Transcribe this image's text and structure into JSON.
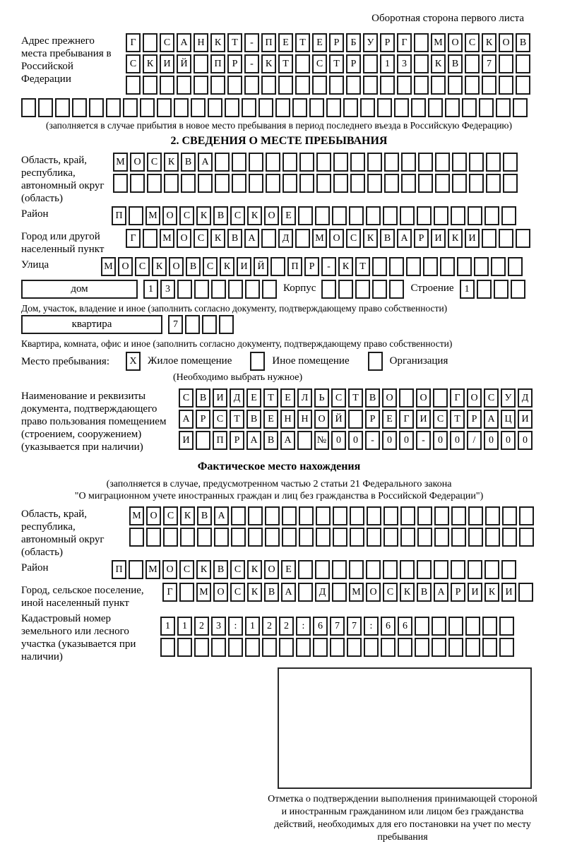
{
  "header": {
    "corner_note": "Оборотная сторона первого листа"
  },
  "prev_address": {
    "label": "Адрес прежнего места пребывания в Российской Федерации",
    "rows": [
      {
        "text": "Г САНКТ-ПЕТЕРБУРГ МОСКОВ",
        "len": 24
      },
      {
        "text": "СКИЙ ПР-КТ СТР 13 КВ 7",
        "len": 24
      },
      {
        "text": "",
        "len": 24
      }
    ],
    "full_row": {
      "text": "",
      "len": 30
    },
    "note": "(заполняется в случае прибытия в новое место пребывания в период последнего въезда в Российскую Федерацию)"
  },
  "section2": {
    "title": "2. СВЕДЕНИЯ О МЕСТЕ ПРЕБЫВАНИЯ",
    "region": {
      "label": "Область, край, республика, автономный округ (область)",
      "rows": [
        {
          "text": "МОСКВА",
          "len": 24
        },
        {
          "text": "",
          "len": 24
        }
      ]
    },
    "district": {
      "label": "Район",
      "row": {
        "text": "П МОСКВСКОЕ",
        "len": 24
      }
    },
    "city": {
      "label": "Город или другой населенный пункт",
      "row": {
        "text": "Г МОСКВА Д МОСКВАРИКИ",
        "len": 24
      }
    },
    "street": {
      "label": "Улица",
      "row": {
        "text": "МОСКОВСКИЙ ПР-КТ",
        "len": 25
      }
    },
    "house": {
      "box_label": "дом",
      "row": {
        "text": "13",
        "len": 8
      },
      "korpus_label": "Корпус",
      "korpus_row": {
        "text": "",
        "len": 5
      },
      "stroenie_label": "Строение",
      "stroenie_row": {
        "text": "1",
        "len": 4
      }
    },
    "house_note": "Дом, участок, владение и иное (заполнить согласно документу, подтверждающему право собственности)",
    "apartment": {
      "box_label": "квартира",
      "row": {
        "text": "7",
        "len": 4
      }
    },
    "apartment_note": "Квартира, комната, офис и иное (заполнить согласно документу, подтверждающему право собственности)",
    "stay": {
      "label": "Место пребывания:",
      "options": [
        {
          "mark": "X",
          "label": "Жилое помещение"
        },
        {
          "mark": "",
          "label": "Иное помещение"
        },
        {
          "mark": "",
          "label": "Организация"
        }
      ],
      "hint": "(Необходимо выбрать нужное)"
    },
    "doc": {
      "label": "Наименование и реквизиты документа, подтверждающего право пользования помещением (строением, сооружением) (указывается при наличии)",
      "rows": [
        {
          "text": "СВИДЕТЕЛЬСТВО О ГОСУД",
          "len": 21
        },
        {
          "text": "АРСТВЕННОЙ РЕГИСТРАЦИ",
          "len": 21
        },
        {
          "text": "И ПРАВА №00-00-00/000",
          "len": 21
        }
      ]
    }
  },
  "fact": {
    "title": "Фактическое место нахождения",
    "note_line1": "(заполняется в случае, предусмотренном частью 2 статьи 21 Федерального закона",
    "note_line2": "\"О миграционном учете иностранных граждан и лиц без гражданства в Российской Федерации\")",
    "region": {
      "label": "Область, край, республика, автономный округ (область)",
      "rows": [
        {
          "text": "МОСКВА",
          "len": 24
        },
        {
          "text": "",
          "len": 24
        }
      ]
    },
    "district": {
      "label": "Район",
      "row": {
        "text": "П МОСКВСКОЕ",
        "len": 24
      }
    },
    "city": {
      "label": "Город, сельское поселение, иной населенный пункт",
      "row": {
        "text": "Г МОСКВА Д МОСКВАРИКИ",
        "len": 22
      }
    },
    "cadastre": {
      "label": "Кадастровый номер земельного или лесного участка (указывается при наличии)",
      "rows": [
        {
          "text": "1123:122:677:66",
          "len": 21
        },
        {
          "text": "",
          "len": 21
        }
      ]
    },
    "stamp_caption": "Отметка о подтверждении выполнения принимающей стороной и иностранным гражданином или лицом без гражданства действий, необходимых для его постановки на учет по месту пребывания"
  }
}
